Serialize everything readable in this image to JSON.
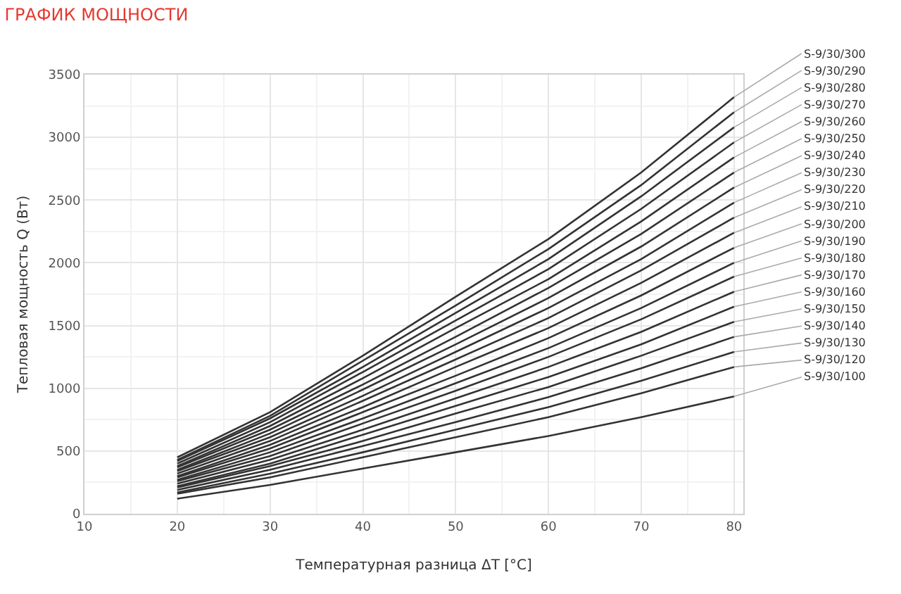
{
  "chart_data": {
    "type": "line",
    "title": "ГРАФИК МОЩНОСТИ",
    "xlabel": "Температурная разница ΔT [°C]",
    "ylabel": "Тепловая мощность Q (Вт)",
    "x": [
      20,
      30,
      40,
      50,
      60,
      70,
      80
    ],
    "xlim": [
      10,
      81
    ],
    "xticks": [
      10,
      20,
      30,
      40,
      50,
      60,
      70,
      80
    ],
    "ylim": [
      0,
      3500
    ],
    "yticks": [
      0,
      500,
      1000,
      1500,
      2000,
      2500,
      3000,
      3500
    ],
    "grid": true,
    "legend": false,
    "marker": "none",
    "line_style": "solid",
    "series": [
      {
        "name": "S-9/30/300",
        "color": "#333333",
        "values": [
          450,
          810,
          1260,
          1730,
          2190,
          2720,
          3320
        ]
      },
      {
        "name": "S-9/30/290",
        "color": "#333333",
        "values": [
          430,
          780,
          1220,
          1660,
          2110,
          2620,
          3200
        ]
      },
      {
        "name": "S-9/30/280",
        "color": "#333333",
        "values": [
          420,
          760,
          1170,
          1600,
          2030,
          2530,
          3080
        ]
      },
      {
        "name": "S-9/30/270",
        "color": "#333333",
        "values": [
          400,
          730,
          1130,
          1540,
          1950,
          2430,
          2960
        ]
      },
      {
        "name": "S-9/30/260",
        "color": "#333333",
        "values": [
          380,
          700,
          1080,
          1480,
          1870,
          2330,
          2840
        ]
      },
      {
        "name": "S-9/30/250",
        "color": "#333333",
        "values": [
          370,
          670,
          1030,
          1410,
          1800,
          2230,
          2720
        ]
      },
      {
        "name": "S-9/30/240",
        "color": "#333333",
        "values": [
          350,
          640,
          990,
          1350,
          1720,
          2130,
          2600
        ]
      },
      {
        "name": "S-9/30/230",
        "color": "#333333",
        "values": [
          340,
          610,
          940,
          1290,
          1640,
          2030,
          2480
        ]
      },
      {
        "name": "S-9/30/220",
        "color": "#333333",
        "values": [
          320,
          580,
          900,
          1230,
          1560,
          1940,
          2360
        ]
      },
      {
        "name": "S-9/30/210",
        "color": "#333333",
        "values": [
          300,
          550,
          850,
          1170,
          1480,
          1840,
          2240
        ]
      },
      {
        "name": "S-9/30/200",
        "color": "#333333",
        "values": [
          290,
          520,
          810,
          1100,
          1400,
          1740,
          2120
        ]
      },
      {
        "name": "S-9/30/190",
        "color": "#333333",
        "values": [
          270,
          490,
          760,
          1040,
          1320,
          1640,
          2000
        ]
      },
      {
        "name": "S-9/30/180",
        "color": "#333333",
        "values": [
          260,
          460,
          720,
          980,
          1250,
          1550,
          1890
        ]
      },
      {
        "name": "S-9/30/170",
        "color": "#333333",
        "values": [
          240,
          430,
          670,
          920,
          1170,
          1450,
          1770
        ]
      },
      {
        "name": "S-9/30/160",
        "color": "#333333",
        "values": [
          220,
          400,
          630,
          860,
          1090,
          1350,
          1650
        ]
      },
      {
        "name": "S-9/30/150",
        "color": "#333333",
        "values": [
          210,
          380,
          580,
          800,
          1010,
          1260,
          1530
        ]
      },
      {
        "name": "S-9/30/140",
        "color": "#333333",
        "values": [
          190,
          350,
          540,
          730,
          930,
          1160,
          1410
        ]
      },
      {
        "name": "S-9/30/130",
        "color": "#333333",
        "values": [
          170,
          320,
          490,
          670,
          850,
          1060,
          1290
        ]
      },
      {
        "name": "S-9/30/120",
        "color": "#333333",
        "values": [
          160,
          290,
          450,
          610,
          770,
          960,
          1170
        ]
      },
      {
        "name": "S-9/30/100",
        "color": "#333333",
        "values": [
          120,
          230,
          360,
          490,
          620,
          770,
          935
        ]
      }
    ]
  }
}
